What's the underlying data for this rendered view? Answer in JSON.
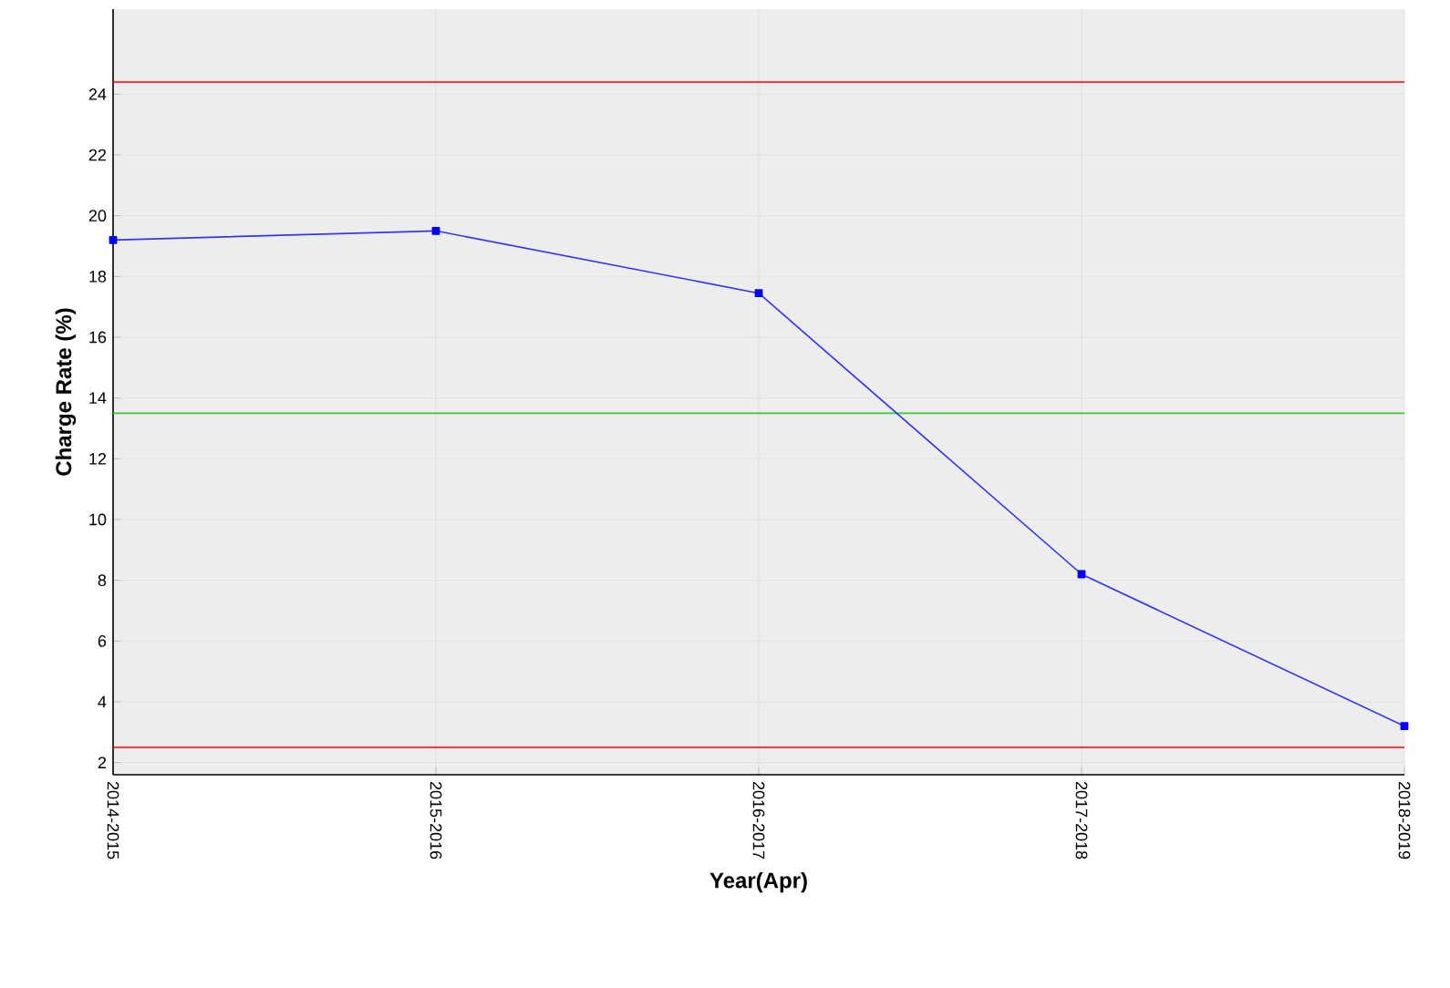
{
  "chart_data": {
    "type": "line",
    "xlabel": "Year(Apr)",
    "ylabel": "Charge Rate (%)",
    "categories": [
      "2014-2015",
      "2015-2016",
      "2016-2017",
      "2017-2018",
      "2018-2019"
    ],
    "series": [
      {
        "color": "#3333ff",
        "values": [
          19.2,
          19.5,
          17.45,
          8.2,
          3.2
        ]
      }
    ],
    "ylim": [
      1.6,
      26.8
    ],
    "yticks": [
      2,
      4,
      6,
      8,
      10,
      12,
      14,
      16,
      18,
      20,
      22,
      24
    ],
    "ref_lines": [
      {
        "axis": "y",
        "value": 24.4,
        "color": "#ff0000"
      },
      {
        "axis": "y",
        "value": 13.5,
        "color": "#33cc33"
      },
      {
        "axis": "y",
        "value": 2.5,
        "color": "#ff0000"
      }
    ],
    "grid": true,
    "marker": "square",
    "line_style": "solid"
  }
}
